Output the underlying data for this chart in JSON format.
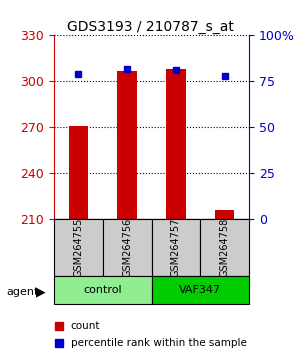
{
  "title": "GDS3193 / 210787_s_at",
  "samples": [
    "GSM264755",
    "GSM264756",
    "GSM264757",
    "GSM264758"
  ],
  "counts": [
    271,
    307,
    308,
    216
  ],
  "percentile_ranks": [
    79,
    82,
    81,
    78
  ],
  "groups": [
    "control",
    "control",
    "VAF347",
    "VAF347"
  ],
  "group_colors": {
    "control": "#90EE90",
    "VAF347": "#00CC00"
  },
  "bar_color": "#CC0000",
  "dot_color": "#0000CC",
  "ylim_left": [
    210,
    330
  ],
  "ylim_right": [
    0,
    100
  ],
  "yticks_left": [
    210,
    240,
    270,
    300,
    330
  ],
  "yticks_right": [
    0,
    25,
    50,
    75,
    100
  ],
  "ytick_labels_right": [
    "0",
    "25",
    "50",
    "75",
    "100%"
  ],
  "left_axis_color": "#CC0000",
  "right_axis_color": "#0000CC",
  "background_color": "#ffffff",
  "plot_bg_color": "#ffffff",
  "agent_label": "agent",
  "legend_count_label": "count",
  "legend_pct_label": "percentile rank within the sample",
  "bar_width": 0.4,
  "grid_color": "#000000",
  "label_fontsize": 9,
  "title_fontsize": 10
}
